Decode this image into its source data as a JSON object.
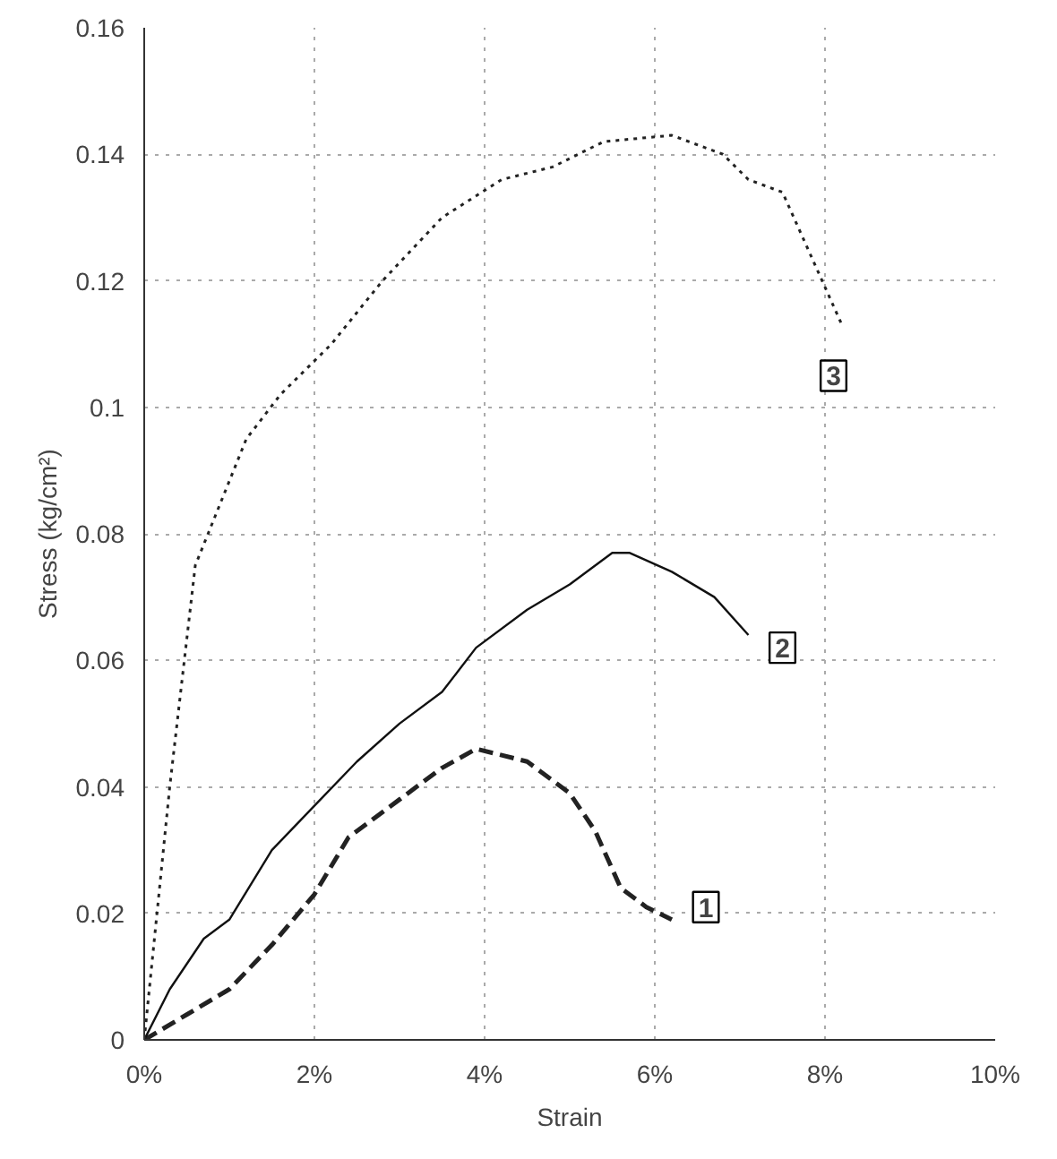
{
  "chart_data": {
    "type": "line",
    "xlabel": "Strain",
    "ylabel": "Stress (kg/cm²)",
    "xlim": [
      0,
      0.1
    ],
    "ylim": [
      0,
      0.16
    ],
    "xticks": [
      {
        "value": 0,
        "label": "0%"
      },
      {
        "value": 0.02,
        "label": "2%"
      },
      {
        "value": 0.04,
        "label": "4%"
      },
      {
        "value": 0.06,
        "label": "6%"
      },
      {
        "value": 0.08,
        "label": "8%"
      },
      {
        "value": 0.1,
        "label": "10%"
      }
    ],
    "yticks": [
      0,
      0.02,
      0.04,
      0.06,
      0.08,
      0.1,
      0.12,
      0.14,
      0.16
    ],
    "grid": true,
    "series": [
      {
        "color": "#222222",
        "line_style": "dashed",
        "x": [
          0,
          0.005,
          0.01,
          0.015,
          0.02,
          0.024,
          0.03,
          0.035,
          0.039,
          0.045,
          0.05,
          0.053,
          0.056,
          0.059,
          0.062
        ],
        "values": [
          0,
          0.004,
          0.008,
          0.015,
          0.023,
          0.032,
          0.038,
          0.043,
          0.046,
          0.044,
          0.039,
          0.033,
          0.024,
          0.021,
          0.019
        ]
      },
      {
        "color": "#111111",
        "line_style": "solid",
        "x": [
          0,
          0.003,
          0.007,
          0.01,
          0.015,
          0.02,
          0.025,
          0.03,
          0.035,
          0.039,
          0.045,
          0.05,
          0.055,
          0.057,
          0.062,
          0.067,
          0.071
        ],
        "values": [
          0,
          0.008,
          0.016,
          0.019,
          0.03,
          0.037,
          0.044,
          0.05,
          0.055,
          0.062,
          0.068,
          0.072,
          0.077,
          0.077,
          0.074,
          0.07,
          0.064
        ]
      },
      {
        "color": "#222222",
        "line_style": "dotted",
        "x": [
          0,
          0.003,
          0.006,
          0.009,
          0.012,
          0.016,
          0.022,
          0.028,
          0.035,
          0.042,
          0.048,
          0.054,
          0.062,
          0.068,
          0.071,
          0.075,
          0.078,
          0.082
        ],
        "values": [
          0,
          0.04,
          0.075,
          0.085,
          0.095,
          0.102,
          0.11,
          0.12,
          0.13,
          0.136,
          0.138,
          0.142,
          0.143,
          0.14,
          0.136,
          0.134,
          0.125,
          0.113
        ]
      }
    ],
    "annotations": [
      {
        "text": "1",
        "x": 0.066,
        "y": 0.021
      },
      {
        "text": "2",
        "x": 0.075,
        "y": 0.062
      },
      {
        "text": "3",
        "x": 0.081,
        "y": 0.105
      }
    ]
  }
}
